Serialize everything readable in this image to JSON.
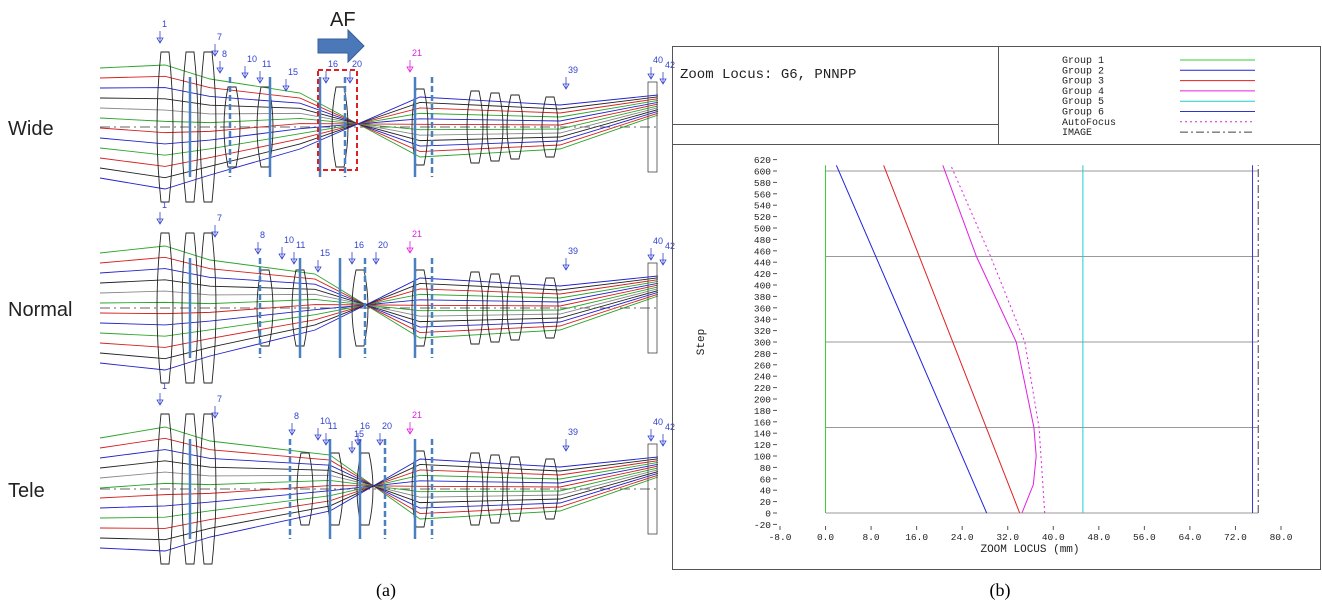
{
  "figure": {
    "panel_a_label": "(a)",
    "panel_b_label": "(b)"
  },
  "diagram": {
    "af_label": "AF",
    "rows": [
      {
        "name": "Wide",
        "surfaces": [
          "1",
          "7",
          "8",
          "10",
          "11",
          "15",
          "16",
          "20",
          "21",
          "39",
          "40",
          "42"
        ]
      },
      {
        "name": "Normal",
        "surfaces": [
          "1",
          "7",
          "8",
          "10",
          "11",
          "15",
          "16",
          "20",
          "21",
          "39",
          "40",
          "42"
        ]
      },
      {
        "name": "Tele",
        "surfaces": [
          "1",
          "7",
          "8",
          "10",
          "11",
          "15",
          "16",
          "20",
          "21",
          "39",
          "40",
          "42"
        ]
      }
    ]
  },
  "chart_data": {
    "type": "line",
    "title": "Zoom Locus: G6, PNNPP",
    "xlabel": "ZOOM LOCUS (mm)",
    "ylabel": "Step",
    "xlim": [
      -8,
      80
    ],
    "ylim": [
      -20,
      620
    ],
    "xticks": [
      {
        "value": -8,
        "label": "-8.0"
      },
      {
        "value": 0,
        "label": "0.0"
      },
      {
        "value": 8,
        "label": "8.0"
      },
      {
        "value": 16,
        "label": "16.0"
      },
      {
        "value": 24,
        "label": "24.0"
      },
      {
        "value": 32,
        "label": "32.0"
      },
      {
        "value": 40,
        "label": "40.0"
      },
      {
        "value": 48,
        "label": "48.0"
      },
      {
        "value": 56,
        "label": "56.0"
      },
      {
        "value": 64,
        "label": "64.0"
      },
      {
        "value": 72,
        "label": "72.0"
      },
      {
        "value": 80,
        "label": "80.0"
      }
    ],
    "yticks": [
      -20,
      0,
      20,
      40,
      60,
      80,
      100,
      120,
      140,
      160,
      180,
      200,
      220,
      240,
      260,
      280,
      300,
      320,
      340,
      360,
      380,
      400,
      420,
      440,
      460,
      480,
      500,
      520,
      540,
      560,
      580,
      600,
      620
    ],
    "ygrid": [
      0,
      150,
      300,
      450,
      600
    ],
    "series": [
      {
        "name": "Group 1",
        "color": "#33cc33",
        "dash": "solid",
        "x": [
          0,
          0
        ],
        "y": [
          0,
          610
        ]
      },
      {
        "name": "Group 2",
        "color": "#2222dd",
        "dash": "solid",
        "x": [
          28.3,
          1.9
        ],
        "y": [
          0,
          610
        ]
      },
      {
        "name": "Group 3",
        "color": "#e02020",
        "dash": "solid",
        "x": [
          34.1,
          10.2
        ],
        "y": [
          0,
          610
        ]
      },
      {
        "name": "Group 4",
        "color": "#e020e0",
        "dash": "solid",
        "x": [
          34.5,
          36.5,
          37,
          36.6,
          33.5,
          26.5,
          20.6
        ],
        "y": [
          0,
          50,
          100,
          150,
          300,
          450,
          610
        ]
      },
      {
        "name": "Group 5",
        "color": "#22cccc",
        "dash": "solid",
        "x": [
          45.2,
          45.2
        ],
        "y": [
          0,
          610
        ]
      },
      {
        "name": "Group 6",
        "color": "#3333cc",
        "dash": "solid",
        "x": [
          75,
          75
        ],
        "y": [
          0,
          610
        ]
      },
      {
        "name": "AutoFocus",
        "color": "#e020e0",
        "dash": "dot",
        "x": [
          38.5,
          37.5,
          35,
          29,
          22
        ],
        "y": [
          0,
          150,
          300,
          450,
          610
        ]
      },
      {
        "name": "IMAGE",
        "color": "#444444",
        "dash": "dashdot",
        "x": [
          76,
          76
        ],
        "y": [
          0,
          610
        ]
      }
    ]
  }
}
